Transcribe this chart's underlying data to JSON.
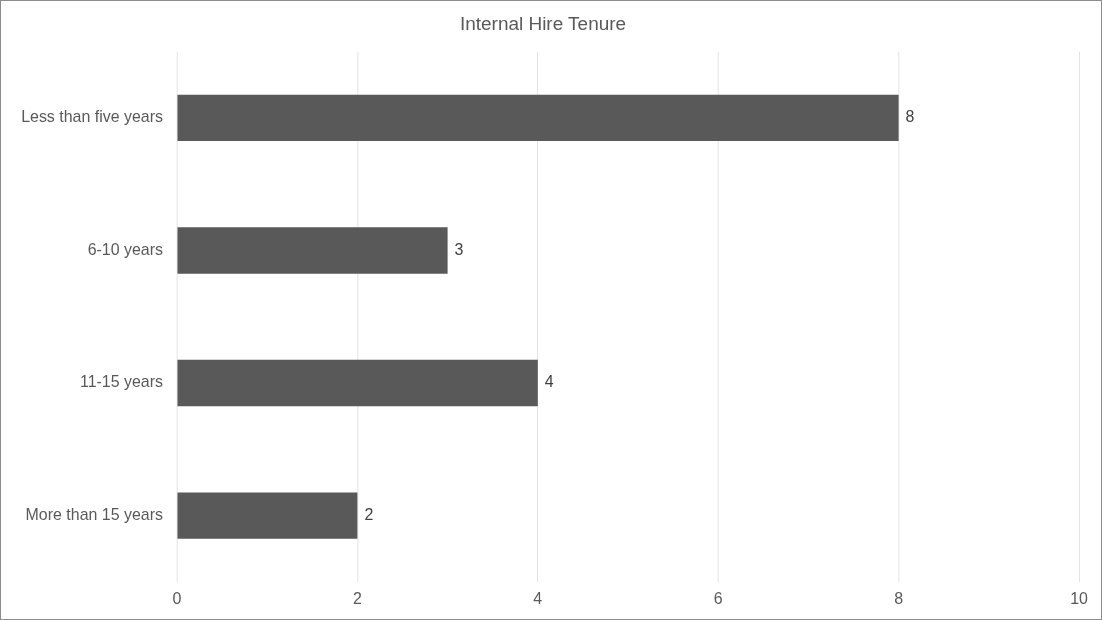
{
  "chart_data": {
    "type": "bar",
    "orientation": "horizontal",
    "title": "Internal Hire Tenure",
    "categories": [
      "Less than five years",
      "6-10 years",
      "11-15 years",
      "More than 15 years"
    ],
    "values": [
      8,
      3,
      4,
      2
    ],
    "color": "#595959",
    "xlim": [
      0,
      10
    ],
    "xticks": [
      0,
      2,
      4,
      6,
      8,
      10
    ],
    "grid": "x",
    "data_labels": true,
    "legend": false
  }
}
